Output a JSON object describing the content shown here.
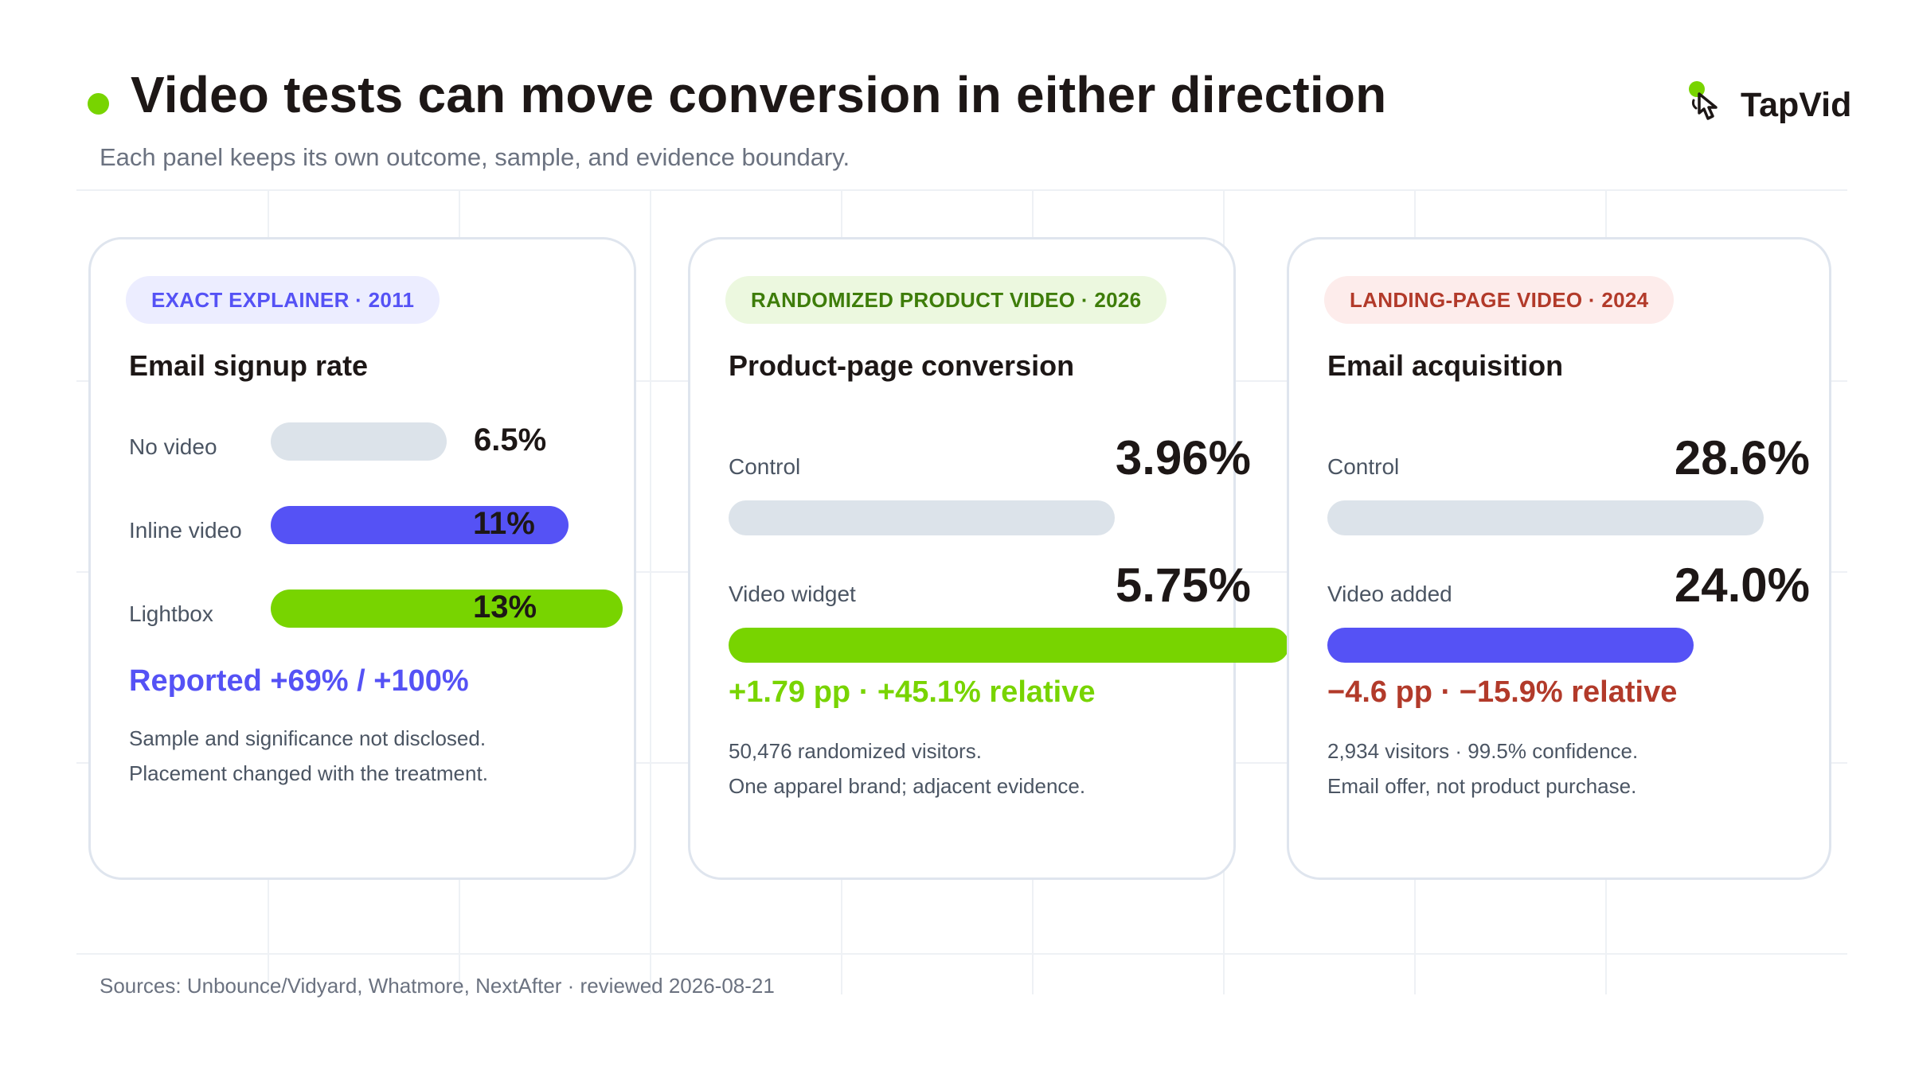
{
  "title": "Video tests can move conversion in either direction",
  "subtitle": "Each panel keeps its own outcome, sample, and evidence boundary.",
  "logo": {
    "text": "TapVid",
    "icon": "pointer-hand-icon"
  },
  "colors": {
    "accent_green": "#78d400",
    "accent_blue": "#5552f5",
    "accent_red": "#b23a2a",
    "neutral_bar": "#dce3ea",
    "dark_green": "#3e7d0a"
  },
  "footer": "Sources: Unbounce/Vidyard, Whatmore, NextAfter · reviewed 2026-08-21",
  "chart_data": [
    {
      "type": "bar",
      "tag": "EXACT EXPLAINER",
      "year": "2011",
      "title": "Email signup rate",
      "categories": [
        "No video",
        "Inline video",
        "Lightbox"
      ],
      "values": [
        6.5,
        11,
        13
      ],
      "value_labels": [
        "6.5%",
        "11%",
        "13%"
      ],
      "headline": "Reported +69% / +100%",
      "notes": [
        "Sample and significance not disclosed.",
        "Placement changed with the treatment."
      ]
    },
    {
      "type": "bar",
      "tag": "RANDOMIZED PRODUCT VIDEO",
      "year": "2026",
      "title": "Product-page conversion",
      "categories": [
        "Control",
        "Video widget"
      ],
      "values": [
        3.96,
        5.75
      ],
      "value_labels": [
        "3.96%",
        "5.75%"
      ],
      "headline": "+1.79 pp · +45.1% relative",
      "notes": [
        "50,476 randomized visitors.",
        "One apparel brand; adjacent evidence."
      ]
    },
    {
      "type": "bar",
      "tag": "LANDING-PAGE VIDEO",
      "year": "2024",
      "title": "Email acquisition",
      "categories": [
        "Control",
        "Video added"
      ],
      "values": [
        28.6,
        24.0
      ],
      "value_labels": [
        "28.6%",
        "24.0%"
      ],
      "headline": "−4.6 pp · −15.9% relative",
      "notes": [
        "2,934 visitors · 99.5% confidence.",
        "Email offer, not product purchase."
      ]
    }
  ]
}
